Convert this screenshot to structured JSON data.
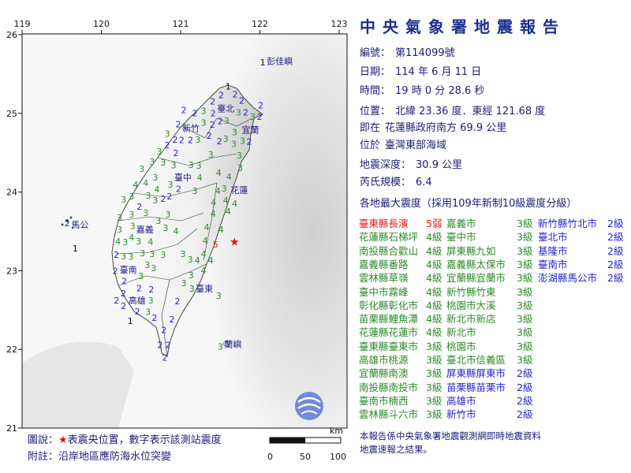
{
  "report": {
    "title": "中央氣象署地震報告",
    "number_label": "編號：",
    "number": "第114099號",
    "date_label": "日期：",
    "date": "114 年 6 月 11 日",
    "time_label": "時間：",
    "time": "19 時 0 分 28.6 秒",
    "location_label": "位置：",
    "location": "北緯 23.36 度．東經 121.68 度",
    "relative_label": "即在",
    "relative": "花蓮縣政府南方 69.9 公里",
    "region_label": "位於",
    "region": "臺灣東部海域",
    "depth_label": "地震深度：",
    "depth": "30.9 公里",
    "magnitude_label": "芮氏規模：",
    "magnitude": "6.4",
    "intensity_heading": "各地最大震度（採用109年新制10級震度分級）",
    "footer_line1": "本報告係中央氣象署地震觀測網即時地震資料",
    "footer_line2": "地震速報之結果。"
  },
  "level_colors": {
    "5弱": "#e41a1a",
    "4級": "#2a8a2a",
    "3級": "#2a8a2a",
    "2級": "#2424d0",
    "1級": "#111111"
  },
  "intensity_columns": [
    [
      {
        "name": "臺東縣長濱",
        "level": "5弱"
      },
      {
        "name": "花蓮縣石梯坪",
        "level": "4級"
      },
      {
        "name": "南投縣合歡山",
        "level": "4級"
      },
      {
        "name": "嘉義縣番路",
        "level": "4級"
      },
      {
        "name": "雲林縣草嶺",
        "level": "4級"
      },
      {
        "name": "臺中市霧峰",
        "level": "4級"
      },
      {
        "name": "彰化縣彰化市",
        "level": "4級"
      },
      {
        "name": "苗栗縣鯉魚潭",
        "level": "4級"
      },
      {
        "name": "花蓮縣花蓮市",
        "level": "4級"
      },
      {
        "name": "臺東縣臺東市",
        "level": "3級"
      },
      {
        "name": "高雄市桃源",
        "level": "3級"
      },
      {
        "name": "宜蘭縣南澳",
        "level": "3級"
      },
      {
        "name": "南投縣南投市",
        "level": "3級"
      },
      {
        "name": "臺南市楠西",
        "level": "3級"
      },
      {
        "name": "雲林縣斗六市",
        "level": "3級"
      }
    ],
    [
      {
        "name": "嘉義市",
        "level": "3級"
      },
      {
        "name": "臺中市",
        "level": "3級"
      },
      {
        "name": "屏東縣九如",
        "level": "3級"
      },
      {
        "name": "嘉義縣太保市",
        "level": "3級"
      },
      {
        "name": "宜蘭縣宜蘭市",
        "level": "3級"
      },
      {
        "name": "新竹縣竹東",
        "level": "3級"
      },
      {
        "name": "桃園市大溪",
        "level": "3級"
      },
      {
        "name": "新北市新店",
        "level": "3級"
      },
      {
        "name": "新北市",
        "level": "3級"
      },
      {
        "name": "桃園市",
        "level": "3級"
      },
      {
        "name": "臺北市信義區",
        "level": "3級"
      },
      {
        "name": "屏東縣屏東市",
        "level": "2級"
      },
      {
        "name": "苗栗縣苗栗市",
        "level": "2級"
      },
      {
        "name": "高雄市",
        "level": "2級"
      },
      {
        "name": "新竹市",
        "level": "2級"
      }
    ],
    [
      {
        "name": "新竹縣竹北市",
        "level": "2級"
      },
      {
        "name": "臺北市",
        "level": "2級"
      },
      {
        "name": "基隆市",
        "level": "2級"
      },
      {
        "name": "臺南市",
        "level": "2級"
      },
      {
        "name": "澎湖縣馬公市",
        "level": "2級"
      }
    ]
  ],
  "map": {
    "lon_ticks": [
      "119",
      "120",
      "121",
      "122",
      "123"
    ],
    "lat_ticks": [
      "26",
      "25",
      "24",
      "23",
      "22",
      "21"
    ],
    "epicenter": {
      "lon": 121.68,
      "lat": 23.36,
      "symbol": "★",
      "color": "#e01010"
    },
    "places": [
      {
        "name": "彭佳嶼",
        "lon": 122.25,
        "lat": 25.66
      },
      {
        "name": "臺北",
        "lon": 121.57,
        "lat": 25.06
      },
      {
        "name": "新竹",
        "lon": 121.13,
        "lat": 24.81
      },
      {
        "name": "宜蘭",
        "lon": 121.88,
        "lat": 24.79
      },
      {
        "name": "臺中",
        "lon": 121.03,
        "lat": 24.18
      },
      {
        "name": "花蓮",
        "lon": 121.74,
        "lat": 24.02
      },
      {
        "name": "馬公",
        "lon": 119.73,
        "lat": 23.58
      },
      {
        "name": "嘉義",
        "lon": 120.55,
        "lat": 23.52
      },
      {
        "name": "臺南",
        "lon": 120.34,
        "lat": 23.01
      },
      {
        "name": "高雄",
        "lon": 120.45,
        "lat": 22.62
      },
      {
        "name": "臺東",
        "lon": 121.3,
        "lat": 22.77
      },
      {
        "name": "蘭嶼",
        "lon": 121.66,
        "lat": 22.06
      }
    ],
    "stations": [
      [
        121.6,
        25.34,
        "1"
      ],
      [
        121.46,
        25.17,
        "2"
      ],
      [
        121.54,
        25.2,
        "2"
      ],
      [
        121.66,
        25.21,
        "2"
      ],
      [
        121.77,
        25.16,
        "2"
      ],
      [
        121.48,
        25.04,
        "2"
      ],
      [
        121.54,
        25.06,
        "3"
      ],
      [
        121.63,
        25.01,
        "3"
      ],
      [
        121.72,
        25.01,
        "2"
      ],
      [
        121.82,
        24.91,
        "3"
      ],
      [
        121.93,
        24.88,
        "2"
      ],
      [
        122.0,
        25.04,
        "2"
      ],
      [
        121.04,
        25.04,
        "2"
      ],
      [
        121.18,
        25.0,
        "2"
      ],
      [
        121.29,
        25.03,
        "3"
      ],
      [
        121.29,
        24.92,
        "3"
      ],
      [
        121.38,
        24.97,
        "2"
      ],
      [
        121.54,
        24.9,
        "2"
      ],
      [
        121.68,
        24.76,
        "3"
      ],
      [
        121.74,
        24.8,
        "3"
      ],
      [
        121.7,
        24.66,
        "3"
      ],
      [
        121.85,
        24.65,
        "2"
      ],
      [
        121.57,
        24.67,
        "3"
      ],
      [
        121.51,
        24.64,
        "2"
      ],
      [
        121.36,
        24.71,
        "2"
      ],
      [
        121.38,
        24.47,
        "3"
      ],
      [
        121.74,
        24.46,
        "3"
      ],
      [
        121.74,
        24.36,
        "3"
      ],
      [
        121.48,
        24.24,
        "4"
      ],
      [
        121.61,
        24.19,
        "4"
      ],
      [
        121.59,
        24.11,
        "3"
      ],
      [
        121.49,
        24.01,
        "4"
      ],
      [
        121.59,
        24.01,
        "4"
      ],
      [
        121.18,
        24.01,
        "3"
      ],
      [
        121.24,
        24.18,
        "4"
      ],
      [
        121.16,
        24.29,
        "3"
      ],
      [
        121.23,
        24.29,
        "3"
      ],
      [
        120.94,
        24.31,
        "3"
      ],
      [
        120.89,
        24.09,
        "3"
      ],
      [
        120.96,
        24.05,
        "2"
      ],
      [
        120.86,
        23.94,
        "2"
      ],
      [
        120.68,
        24.18,
        "3"
      ],
      [
        120.69,
        24.09,
        "4"
      ],
      [
        120.56,
        24.11,
        "4"
      ],
      [
        120.43,
        24.09,
        "4"
      ],
      [
        120.58,
        24.01,
        "3"
      ],
      [
        120.38,
        23.94,
        "3"
      ],
      [
        120.78,
        24.37,
        "3"
      ],
      [
        120.64,
        24.38,
        "3"
      ],
      [
        120.51,
        24.29,
        "3"
      ],
      [
        120.76,
        24.46,
        "3"
      ],
      [
        120.94,
        24.49,
        "2"
      ],
      [
        120.83,
        24.59,
        "2"
      ],
      [
        121.0,
        24.67,
        "2"
      ],
      [
        121.11,
        24.67,
        "2"
      ],
      [
        120.86,
        24.71,
        "3"
      ],
      [
        121.01,
        24.86,
        "2"
      ],
      [
        121.01,
        24.8,
        "2"
      ],
      [
        121.08,
        24.78,
        "3"
      ],
      [
        120.28,
        23.9,
        "3"
      ],
      [
        120.48,
        23.81,
        "2"
      ],
      [
        120.38,
        23.71,
        "3"
      ],
      [
        120.54,
        23.73,
        "3"
      ],
      [
        120.23,
        23.67,
        "3"
      ],
      [
        120.84,
        23.71,
        "3"
      ],
      [
        120.23,
        23.56,
        "3"
      ],
      [
        120.38,
        23.58,
        "3"
      ],
      [
        120.46,
        23.56,
        "4"
      ],
      [
        120.68,
        23.63,
        "3"
      ],
      [
        120.81,
        23.54,
        "3"
      ],
      [
        120.59,
        23.46,
        "4"
      ],
      [
        120.29,
        23.5,
        "3"
      ],
      [
        120.21,
        23.37,
        "4"
      ],
      [
        120.41,
        23.37,
        "3"
      ],
      [
        120.94,
        23.5,
        "4"
      ],
      [
        120.49,
        23.25,
        "3"
      ],
      [
        120.63,
        23.27,
        "3"
      ],
      [
        120.78,
        23.2,
        "3"
      ],
      [
        121.03,
        23.21,
        "3"
      ],
      [
        120.19,
        23.2,
        "2"
      ],
      [
        120.28,
        23.16,
        "3"
      ],
      [
        120.58,
        23.11,
        "3"
      ],
      [
        120.19,
        23.01,
        "2"
      ],
      [
        120.26,
        23.06,
        "3"
      ],
      [
        120.64,
        23.03,
        "3"
      ],
      [
        120.48,
        22.93,
        "3"
      ],
      [
        120.26,
        22.89,
        "2"
      ],
      [
        120.49,
        22.76,
        "2"
      ],
      [
        120.63,
        22.76,
        "2"
      ],
      [
        120.31,
        22.76,
        "2"
      ],
      [
        120.26,
        22.66,
        "2"
      ],
      [
        120.49,
        22.66,
        "3"
      ],
      [
        120.31,
        22.6,
        "2"
      ],
      [
        120.44,
        22.49,
        "2"
      ],
      [
        120.56,
        22.5,
        "3"
      ],
      [
        120.63,
        22.4,
        "2"
      ],
      [
        120.38,
        22.37,
        "1"
      ],
      [
        120.96,
        22.61,
        "2"
      ],
      [
        120.89,
        22.38,
        "2"
      ],
      [
        120.79,
        22.24,
        "2"
      ],
      [
        120.74,
        22.05,
        "2"
      ],
      [
        120.84,
        22.05,
        "2"
      ],
      [
        120.79,
        21.95,
        "2"
      ],
      [
        121.13,
        22.94,
        "3"
      ],
      [
        121.08,
        22.84,
        "3"
      ],
      [
        121.16,
        22.77,
        "3"
      ],
      [
        121.48,
        22.68,
        "3"
      ],
      [
        121.29,
        23.0,
        "4"
      ],
      [
        121.38,
        23.13,
        "4"
      ],
      [
        121.29,
        23.21,
        "4"
      ],
      [
        121.21,
        23.13,
        "4"
      ],
      [
        121.19,
        23.18,
        "3"
      ],
      [
        121.31,
        23.38,
        "4"
      ],
      [
        121.44,
        23.33,
        "5"
      ],
      [
        121.51,
        23.52,
        "4"
      ],
      [
        121.33,
        23.55,
        "4"
      ],
      [
        121.41,
        23.72,
        "4"
      ],
      [
        121.56,
        23.82,
        "4"
      ],
      [
        121.59,
        23.93,
        "4"
      ],
      [
        121.43,
        23.85,
        "4"
      ],
      [
        120.86,
        23.91,
        "2"
      ],
      [
        120.68,
        23.91,
        "3"
      ],
      [
        119.59,
        23.6,
        "2"
      ],
      [
        119.67,
        23.28,
        "1"
      ],
      [
        122.05,
        25.66,
        "1"
      ],
      [
        121.53,
        22.06,
        "3"
      ]
    ],
    "station_colors": {
      "1": "#111111",
      "2": "#2424d0",
      "3": "#2a8a2a",
      "4": "#2a8a2a",
      "5": "#e41a1a"
    }
  },
  "legend": {
    "line1_prefix": "圖說：",
    "line1_star": "★",
    "line1_text": "表震央位置，數字表示該測站震度",
    "line2": "附註：沿岸地區應防海水位突變"
  },
  "scale_bar": {
    "unit": "km",
    "labels": [
      "0",
      "50",
      "100"
    ]
  }
}
